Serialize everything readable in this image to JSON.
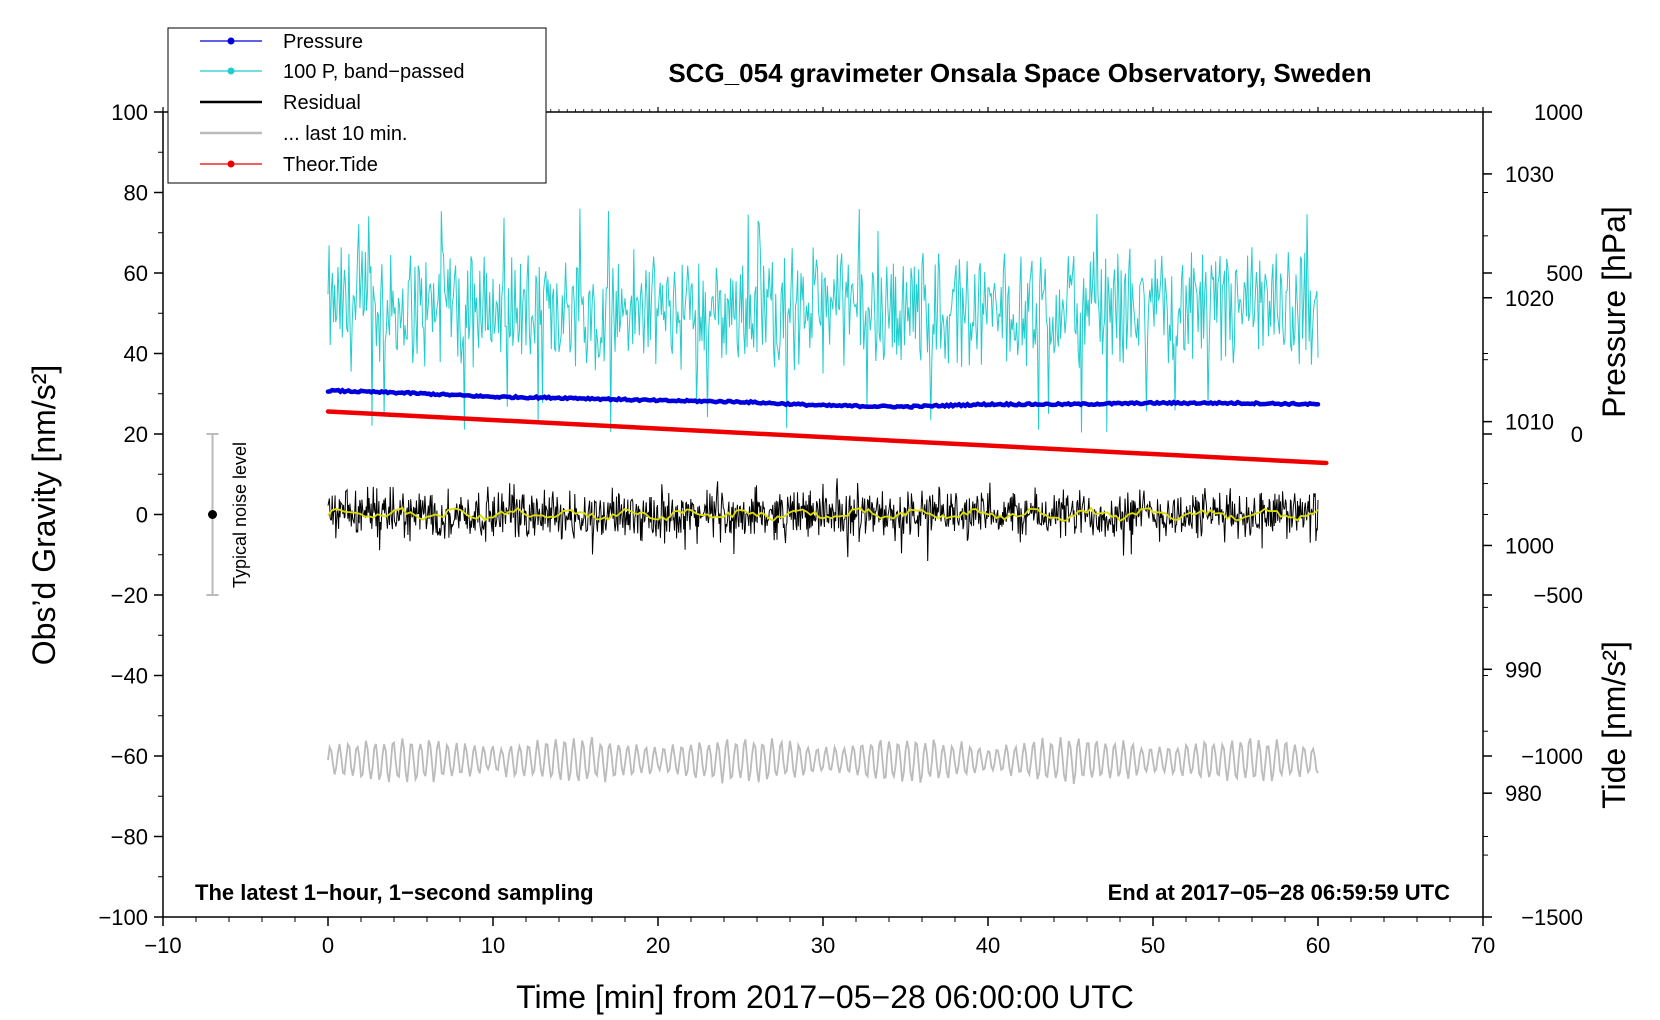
{
  "chart_data": {
    "type": "line",
    "title": "SCG_054 gravimeter Onsala Space Observatory, Sweden",
    "xlabel": "Time [min] from 2017−05−28 06:00:00 UTC",
    "ylabel_left": "Obs’d Gravity [nm/s²]",
    "ylabel_right_top": "Pressure [hPa]",
    "ylabel_right_bottom": "Tide [nm/s²]",
    "xlim": [
      -10,
      70
    ],
    "ylim": [
      -100,
      100
    ],
    "pressure_lim": [
      1035,
      970
    ],
    "tide_lim": [
      -1500,
      1000
    ],
    "x_ticks": [
      "−10",
      "0",
      "10",
      "20",
      "30",
      "40",
      "50",
      "60",
      "70"
    ],
    "y_ticks": [
      "100",
      "80",
      "60",
      "40",
      "20",
      "0",
      "−20",
      "−40",
      "−60",
      "−80",
      "−100"
    ],
    "pressure_ticks": [
      "1030",
      "1020",
      "1010",
      "1000",
      "990",
      "980"
    ],
    "tide_ticks": [
      "1000",
      "500",
      "0",
      "−500",
      "−1000",
      "−1500"
    ],
    "legend": [
      {
        "label": "Pressure",
        "color": "#0000dd",
        "marker": true
      },
      {
        "label": "100 P, band−passed",
        "color": "#22cccc",
        "marker": true
      },
      {
        "label": "Residual",
        "color": "#000000",
        "marker": false
      },
      {
        "label": "... last 10 min.",
        "color": "#bbbbbb",
        "marker": false
      },
      {
        "label": "Theor.Tide",
        "color": "#ee0000",
        "marker": true
      }
    ],
    "note_left": "The latest 1−hour, 1−second sampling",
    "note_right": "End at 2017−05−28 06:59:59 UTC",
    "noise_label": "Typical noise level",
    "noise_bar": {
      "x": -7,
      "center": 0,
      "low": -20,
      "high": 20
    },
    "series": [
      {
        "name": "Pressure",
        "color": "#0000dd",
        "axis": "pressure",
        "x": [
          0,
          5,
          10,
          15,
          20,
          25,
          30,
          35,
          40,
          45,
          50,
          55,
          60
        ],
        "values": [
          1012.5,
          1012.3,
          1012.0,
          1011.9,
          1011.7,
          1011.6,
          1011.3,
          1011.2,
          1011.4,
          1011.4,
          1011.5,
          1011.5,
          1011.4
        ]
      },
      {
        "name": "100 P, band−passed",
        "color": "#22cccc",
        "axis": "gravity",
        "x": [
          0,
          60
        ],
        "mean": 51,
        "amplitude": 12,
        "min": 20,
        "max": 76
      },
      {
        "name": "Residual",
        "color": "#000000",
        "axis": "gravity",
        "x": [
          0,
          60
        ],
        "mean": 0,
        "amplitude": 5,
        "min": -12,
        "max": 10
      },
      {
        "name": "Residual smoothed",
        "color": "#dddd00",
        "axis": "gravity",
        "x": [
          0,
          60
        ],
        "mean": 0,
        "amplitude": 1.5
      },
      {
        "name": "... last 10 min.",
        "color": "#bbbbbb",
        "axis": "gravity",
        "x": [
          0,
          60
        ],
        "mean": -61,
        "amplitude": 5,
        "min": -69,
        "max": -54
      },
      {
        "name": "Theor.Tide",
        "color": "#ee0000",
        "axis": "tide",
        "x": [
          0,
          60.5
        ],
        "values": [
          70,
          -90
        ]
      }
    ]
  }
}
